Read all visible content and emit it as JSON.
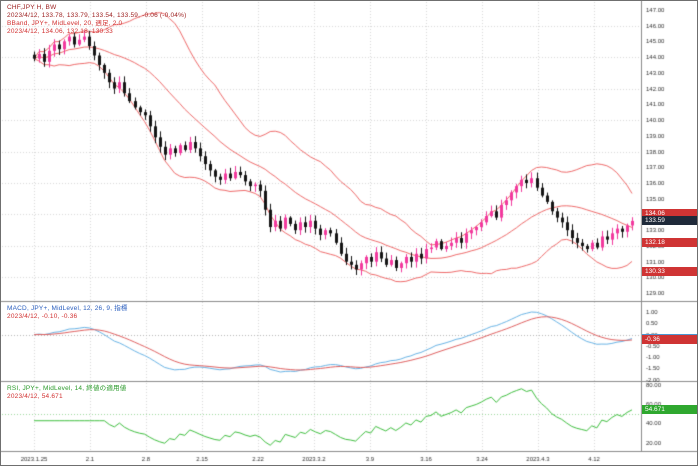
{
  "symbol_panel": {
    "line1": "CHF,JPY H, BW",
    "line2": "2023/4/12, 133.78, 133.79, 133.54, 133.59, -0.06 (-0.04%)",
    "line3": "BBand, JPY+, MidLevel, 20, 週足, 2.0",
    "line4": "2023/4/12, 134.06, 132.18, 130.33"
  },
  "macd_panel": {
    "line1": "MACD, JPY+, MidLevel, 12, 26, 9, 指標",
    "line2": "2023/4/12, -0.10, -0.36",
    "value_main": "-0.10",
    "value_signal": "-0.36"
  },
  "rsi_panel": {
    "line1": "RSI, JPY+, MidLevel, 14, 終値の適用値",
    "line2": "2023/4/12, 54.671",
    "value": "54.671"
  },
  "price_axis": {
    "min": 128.5,
    "max": 147.5,
    "tick_step": 1.0,
    "tick_decimals": 2,
    "last_price": "133.59",
    "bb_upper": "134.06",
    "bb_mid": "132.18",
    "bb_lower": "130.33"
  },
  "chart_data": {
    "type": "candlestick",
    "symbol": "CHF/JPY",
    "timeframe": "H",
    "date": "2023/4/12",
    "ohlc": {
      "open": "133.78",
      "high": "133.79",
      "low": "133.54",
      "close": "133.59",
      "change": "-0.06 (-0.04%)"
    },
    "closes": [
      143.9,
      144.2,
      143.7,
      144.4,
      144.8,
      144.5,
      145.0,
      145.3,
      144.8,
      145.1,
      145.3,
      144.7,
      144.1,
      143.5,
      143.0,
      142.4,
      142.0,
      142.4,
      141.7,
      141.2,
      140.8,
      140.5,
      140.3,
      139.6,
      138.9,
      138.3,
      137.8,
      138.2,
      137.9,
      138.4,
      138.1,
      138.6,
      138.2,
      137.7,
      137.2,
      136.8,
      136.4,
      136.2,
      136.6,
      136.3,
      136.7,
      136.5,
      136.1,
      135.8,
      135.9,
      135.5,
      134.3,
      133.2,
      133.6,
      133.1,
      133.8,
      133.4,
      133.0,
      133.5,
      133.2,
      133.6,
      133.1,
      132.7,
      133.0,
      132.8,
      132.2,
      131.5,
      131.0,
      130.8,
      130.5,
      130.9,
      131.3,
      131.0,
      131.6,
      131.2,
      130.8,
      131.1,
      130.6,
      130.9,
      131.3,
      131.0,
      131.5,
      131.2,
      131.8,
      131.9,
      132.3,
      131.8,
      132.0,
      132.2,
      132.5,
      132.2,
      132.8,
      133.0,
      133.2,
      133.5,
      133.9,
      134.2,
      133.8,
      134.6,
      134.9,
      135.4,
      135.8,
      136.2,
      136.0,
      136.3,
      135.7,
      135.2,
      134.8,
      134.2,
      133.8,
      133.5,
      133.0,
      132.5,
      132.2,
      132.0,
      131.8,
      132.2,
      131.9,
      132.6,
      132.4,
      132.8,
      133.1,
      132.9,
      133.3,
      133.59
    ],
    "x_labels": [
      "2023.1.25",
      "2.1",
      "2.8",
      "2.15",
      "2.22",
      "2023.3.2",
      "3.9",
      "3.16",
      "3.24",
      "2023.4.3",
      "4.12"
    ],
    "indicators": {
      "bollinger": {
        "period": 20,
        "deviation": 2.0,
        "upper": 134.06,
        "middle": 132.18,
        "lower": 130.33
      },
      "macd": {
        "fast": 12,
        "slow": 26,
        "signal_period": 9,
        "main_value": -0.1,
        "signal_value": -0.36
      },
      "rsi": {
        "period": 14,
        "value": 54.671,
        "level": 50
      }
    },
    "ylim": [
      128.5,
      147.5
    ],
    "grid": true,
    "legend_position": "top-left"
  },
  "colors": {
    "bull": "#f23a9e",
    "bear": "#151515",
    "bollinger": "#ef6a6a",
    "macd_main": "#69b4e6",
    "macd_signal": "#e06060",
    "rsi": "#3fbf3f",
    "rsi_level": "#9bd89b",
    "grid": "#d8d8d8",
    "separator": "#8a8a8a",
    "axis_text": "#333333",
    "tag_dark_bg": "#1f2a3a",
    "tag_red_bg": "#cf3434",
    "tag_blue_bg": "#4a97d2",
    "tag_green_bg": "#2fa82f"
  }
}
